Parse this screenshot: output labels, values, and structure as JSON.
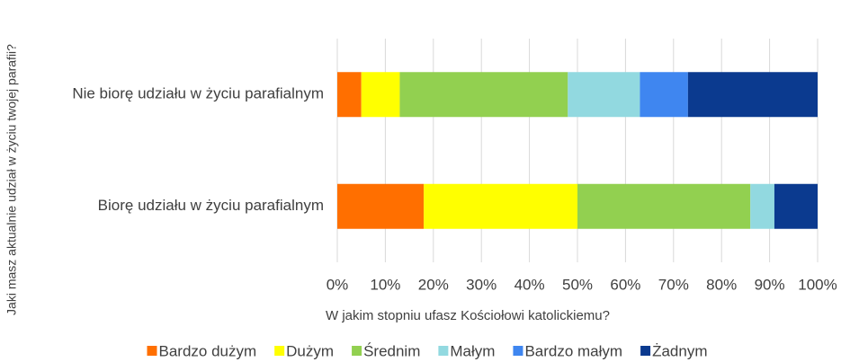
{
  "chart_data": {
    "type": "stacked_barh",
    "categories": [
      "Nie biorę udziału w życiu parafialnym",
      "Biorę udziału w życiu parafialnym"
    ],
    "series": [
      {
        "name": "Bardzo dużym",
        "color": "#ff6f00",
        "values": [
          5,
          18
        ]
      },
      {
        "name": "Dużym",
        "color": "#ffff00",
        "values": [
          8,
          32
        ]
      },
      {
        "name": "Średnim",
        "color": "#92d050",
        "values": [
          35,
          36
        ]
      },
      {
        "name": "Małym",
        "color": "#92d9e0",
        "values": [
          15,
          5
        ]
      },
      {
        "name": "Bardzo małym",
        "color": "#3f86f0",
        "values": [
          10,
          0
        ]
      },
      {
        "name": "Żadnym",
        "color": "#0b3a8f",
        "values": [
          27,
          9
        ]
      }
    ],
    "xlabel": "W jakim stopniu ufasz Kościołowi katolickiemu?",
    "ylabel": "Jaki masz aktualnie udział w życiu twojej parafii?",
    "xlim": [
      0,
      100
    ],
    "xticks": [
      {
        "value": 0,
        "label": "0%"
      },
      {
        "value": 10,
        "label": "10%"
      },
      {
        "value": 20,
        "label": "20%"
      },
      {
        "value": 30,
        "label": "30%"
      },
      {
        "value": 40,
        "label": "40%"
      },
      {
        "value": 50,
        "label": "50%"
      },
      {
        "value": 60,
        "label": "60%"
      },
      {
        "value": 70,
        "label": "70%"
      },
      {
        "value": 80,
        "label": "80%"
      },
      {
        "value": 90,
        "label": "90%"
      },
      {
        "value": 100,
        "label": "100%"
      }
    ],
    "grid": true,
    "legend": "bottom"
  }
}
